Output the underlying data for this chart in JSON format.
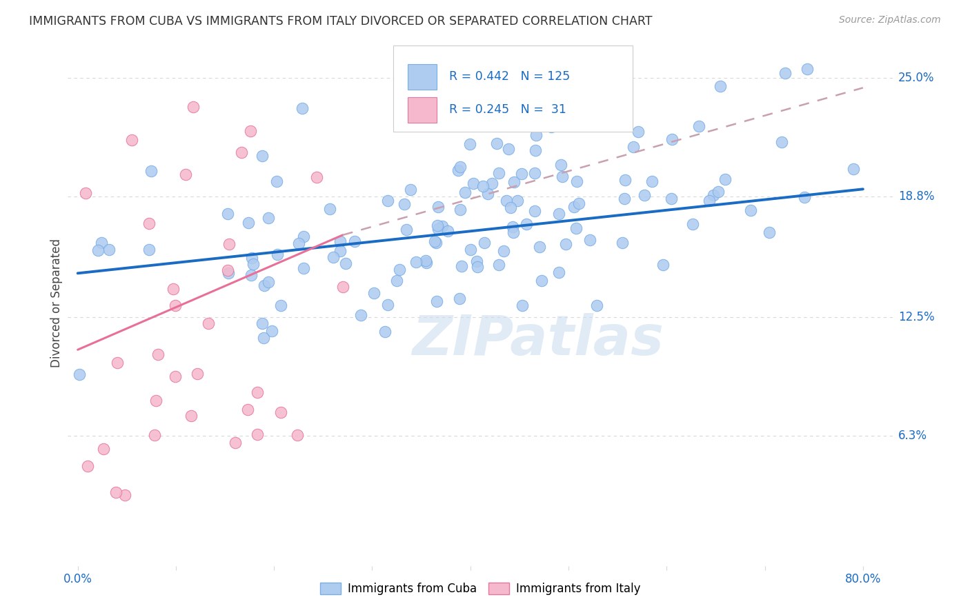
{
  "title": "IMMIGRANTS FROM CUBA VS IMMIGRANTS FROM ITALY DIVORCED OR SEPARATED CORRELATION CHART",
  "source_text": "Source: ZipAtlas.com",
  "ylabel": "Divorced or Separated",
  "ytick_labels": [
    "6.3%",
    "12.5%",
    "18.8%",
    "25.0%"
  ],
  "ytick_values": [
    0.063,
    0.125,
    0.188,
    0.25
  ],
  "watermark": "ZIPatlas",
  "cuba_color": "#aecbf0",
  "cuba_edge": "#7aaee8",
  "italy_color": "#f5b8cc",
  "italy_edge": "#e8789a",
  "cuba_line_color": "#1a6bc4",
  "italy_line_color": "#e87098",
  "background_color": "#ffffff",
  "grid_color": "#d8d8d8",
  "cuba_R": 0.442,
  "italy_R": 0.245,
  "cuba_N": 125,
  "italy_N": 31,
  "title_color": "#333333",
  "source_color": "#999999",
  "tick_color": "#1a6bc4",
  "ytick_color": "#1a6bc4"
}
